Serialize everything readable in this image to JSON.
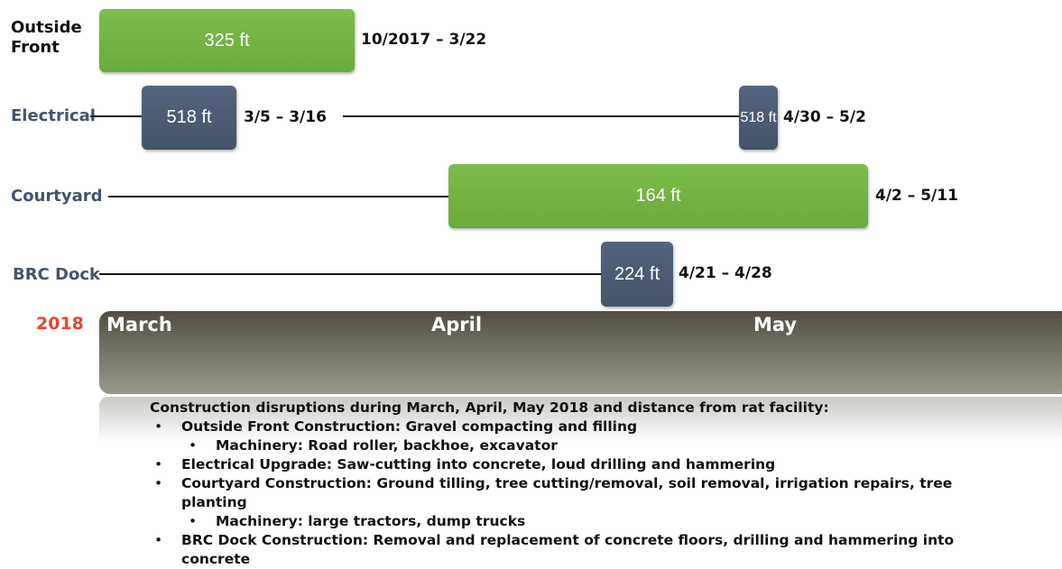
{
  "rows": [
    {
      "label": "Outside Front",
      "segments": [
        {
          "text": "325 ft",
          "dates": "10/2017 – 3/22"
        }
      ]
    },
    {
      "label": "Electrical",
      "segments": [
        {
          "text": "518 ft",
          "dates": "3/5 – 3/16"
        },
        {
          "text": "518 ft",
          "dates": "4/30 – 5/2"
        }
      ]
    },
    {
      "label": "Courtyard",
      "segments": [
        {
          "text": "164 ft",
          "dates": "4/2 – 5/11"
        }
      ]
    },
    {
      "label": "BRC Dock",
      "segments": [
        {
          "text": "224 ft",
          "dates": "4/21 – 4/28"
        }
      ]
    }
  ],
  "timeline": {
    "year": "2018",
    "months": [
      "March",
      "April",
      "May"
    ]
  },
  "notes": {
    "heading": "Construction disruptions during March, April, May 2018 and distance from rat facility:",
    "items": [
      {
        "text": "Outside Front Construction: Gravel compacting and filling",
        "sub": [
          "Machinery: Road roller, backhoe, excavator"
        ]
      },
      {
        "text": "Electrical Upgrade: Saw-cutting into concrete, loud drilling and hammering",
        "sub": []
      },
      {
        "text": "Courtyard Construction: Ground tilling, tree cutting/removal, soil removal, irrigation repairs, tree planting",
        "sub": [
          "Machinery: large tractors, dump trucks"
        ]
      },
      {
        "text": "BRC Dock Construction: Removal and replacement of concrete floors, drilling and hammering into concrete",
        "sub": []
      }
    ]
  }
}
